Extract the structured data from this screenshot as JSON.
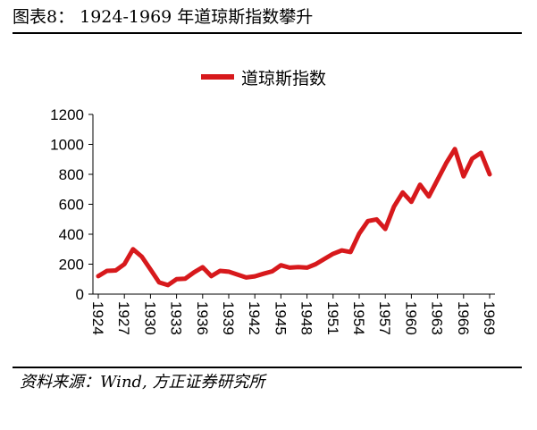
{
  "header": {
    "title": "图表8： 1924-1969 年道琼斯指数攀升"
  },
  "footer": {
    "source": "资料来源：Wind, 方正证券研究所"
  },
  "chart_data": {
    "type": "line",
    "legend": {
      "position": "top-center",
      "entries": [
        "道琼斯指数"
      ]
    },
    "series": [
      {
        "name": "道琼斯指数",
        "color": "#d7191c",
        "x": [
          1924,
          1925,
          1926,
          1927,
          1928,
          1929,
          1930,
          1931,
          1932,
          1933,
          1934,
          1935,
          1936,
          1937,
          1938,
          1939,
          1940,
          1941,
          1942,
          1943,
          1944,
          1945,
          1946,
          1947,
          1948,
          1949,
          1950,
          1951,
          1952,
          1953,
          1954,
          1955,
          1956,
          1957,
          1958,
          1959,
          1960,
          1961,
          1962,
          1963,
          1964,
          1965,
          1966,
          1967,
          1968,
          1969
        ],
        "values": [
          120,
          155,
          158,
          200,
          300,
          250,
          165,
          78,
          60,
          100,
          103,
          145,
          180,
          120,
          155,
          150,
          131,
          111,
          119,
          136,
          152,
          193,
          177,
          181,
          177,
          200,
          235,
          269,
          292,
          281,
          404,
          488,
          499,
          435,
          584,
          679,
          616,
          731,
          652,
          763,
          874,
          969,
          786,
          905,
          944,
          800
        ]
      }
    ],
    "xticks": [
      "1924",
      "1927",
      "1930",
      "1933",
      "1936",
      "1939",
      "1942",
      "1945",
      "1948",
      "1951",
      "1954",
      "1957",
      "1960",
      "1963",
      "1966",
      "1969"
    ],
    "yticks": [
      "0",
      "200",
      "400",
      "600",
      "800",
      "1000",
      "1200"
    ],
    "ylim": [
      0,
      1200
    ],
    "xlim": [
      1924,
      1969
    ],
    "grid": false
  }
}
